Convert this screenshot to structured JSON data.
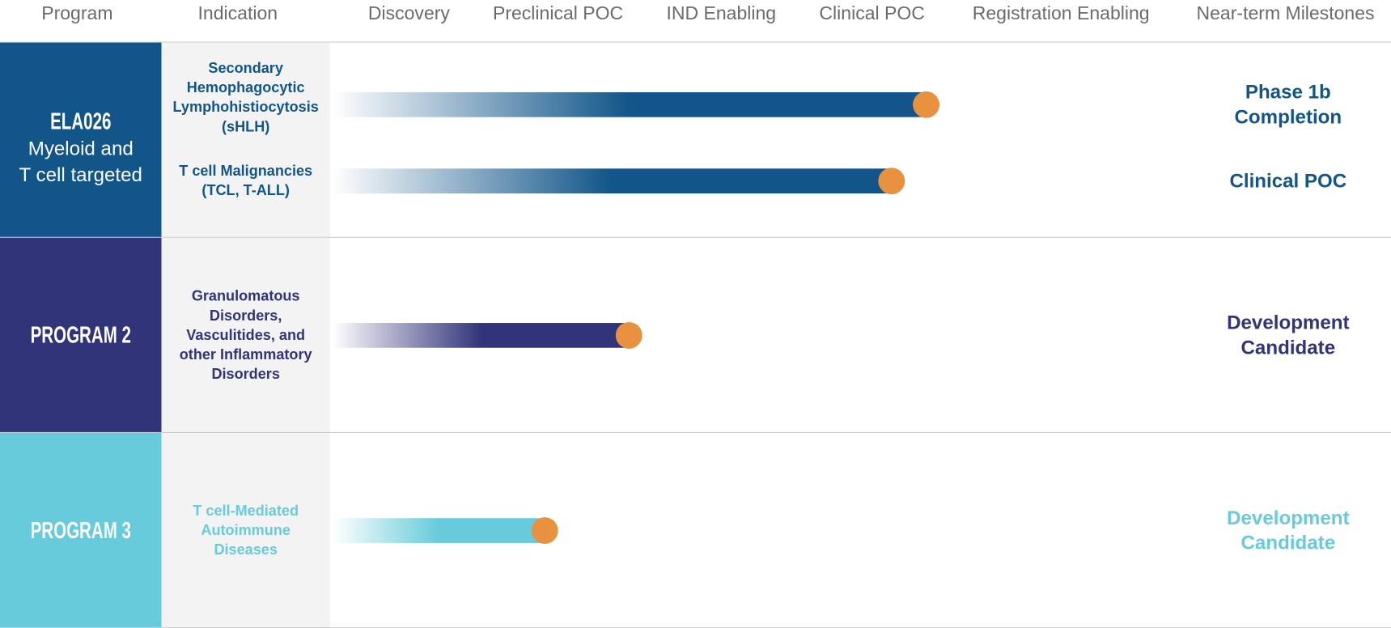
{
  "header": {
    "columns": [
      "Program",
      "Indication",
      "Discovery",
      "Preclinical POC",
      "IND Enabling",
      "Clinical POC",
      "Registration Enabling",
      "Near-term Milestones"
    ]
  },
  "progress_scale": [
    0,
    100
  ],
  "programs": [
    {
      "name": "ELA026",
      "subtitle_lines": [
        "Myeloid and",
        "T cell targeted"
      ],
      "color": "#115589",
      "indications": [
        {
          "label_lines": [
            "Secondary",
            "Hemophagocytic",
            "Lymphohistiocytosis",
            "(sHLH)"
          ],
          "progress": 70,
          "milestone_lines": [
            "Phase 1b",
            "Completion"
          ]
        },
        {
          "label_lines": [
            "T cell Malignancies",
            "(TCL, T-ALL)"
          ],
          "progress": 66,
          "milestone_lines": [
            "Clinical POC"
          ]
        }
      ]
    },
    {
      "name": "PROGRAM 2",
      "subtitle_lines": [],
      "color": "#32347a",
      "indications": [
        {
          "label_lines": [
            "Granulomatous",
            "Disorders,",
            "Vasculitides, and",
            "other Inflammatory",
            "Disorders"
          ],
          "progress": 35,
          "milestone_lines": [
            "Development",
            "Candidate"
          ]
        }
      ]
    },
    {
      "name": "PROGRAM 3",
      "subtitle_lines": [],
      "color": "#67cbdb",
      "indications": [
        {
          "label_lines": [
            "T cell-Mediated",
            "Autoimmune",
            "Diseases"
          ],
          "progress": 25,
          "milestone_lines": [
            "Development",
            "Candidate"
          ]
        }
      ]
    }
  ],
  "marker_color": "#e8923f"
}
